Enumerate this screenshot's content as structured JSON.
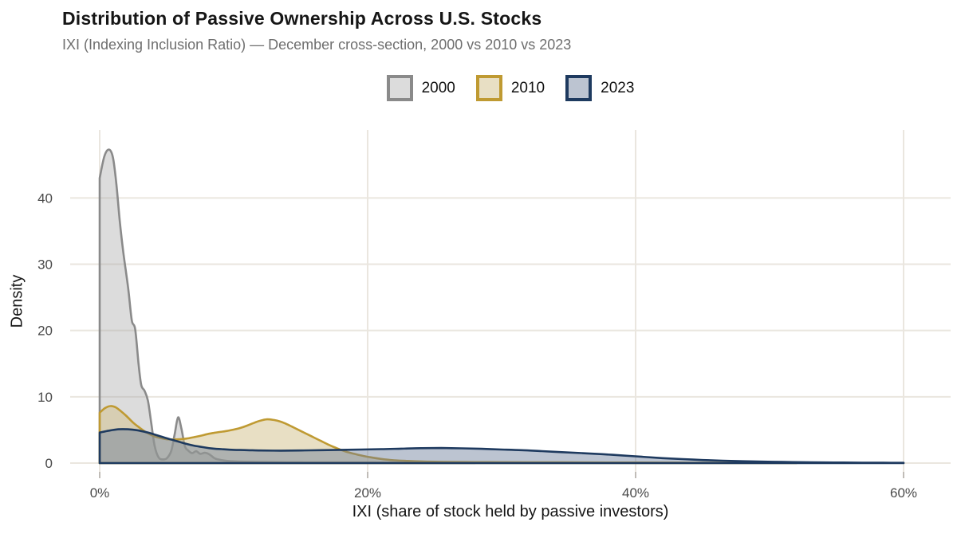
{
  "title": "Distribution of Passive Ownership Across U.S. Stocks",
  "subtitle": "IXI (Indexing Inclusion Ratio) — December cross-section, 2000 vs 2010 vs 2023",
  "colors": {
    "background": "#ffffff",
    "grid": "#eae6df",
    "tick_mark": "#b0aca5",
    "axis_text": "#4a4a4a",
    "title_text": "#161616",
    "subtitle_text": "#6e6e6e"
  },
  "chart_data": {
    "type": "area",
    "variant": "kernel-density",
    "title": "Distribution of Passive Ownership Across U.S. Stocks",
    "subtitle": "IXI (Indexing Inclusion Ratio) — December cross-section, 2000 vs 2010 vs 2023",
    "xlabel": "IXI (share of stock held by passive investors)",
    "ylabel": "Density",
    "xlim": [
      0,
      62
    ],
    "ylim": [
      0,
      50
    ],
    "grid": true,
    "legend_position": "top-center",
    "x_tick_values": [
      0,
      20,
      40,
      60
    ],
    "x_tick_labels": [
      "0%",
      "20%",
      "40%",
      "60%"
    ],
    "y_tick_values": [
      0,
      10,
      20,
      30,
      40
    ],
    "y_tick_labels": [
      "0",
      "10",
      "20",
      "30",
      "40"
    ],
    "series": [
      {
        "name": "2000",
        "stroke": "#8a8a8a",
        "fill": "rgba(167,167,167,0.40)",
        "key_fill": "#dcdcdc",
        "points": [
          [
            0,
            43
          ],
          [
            0.35,
            46.3
          ],
          [
            0.7,
            47.3
          ],
          [
            1.0,
            46.0
          ],
          [
            1.25,
            42.0
          ],
          [
            1.5,
            36.5
          ],
          [
            1.75,
            32.0
          ],
          [
            1.95,
            29.0
          ],
          [
            2.15,
            26.0
          ],
          [
            2.4,
            21.5
          ],
          [
            2.65,
            20.2
          ],
          [
            2.9,
            15.0
          ],
          [
            3.1,
            11.8
          ],
          [
            3.35,
            10.9
          ],
          [
            3.6,
            9.4
          ],
          [
            3.85,
            6.0
          ],
          [
            4.1,
            2.6
          ],
          [
            4.4,
            0.85
          ],
          [
            4.75,
            0.55
          ],
          [
            5.05,
            0.8
          ],
          [
            5.35,
            1.9
          ],
          [
            5.6,
            4.4
          ],
          [
            5.85,
            6.9
          ],
          [
            6.1,
            5.2
          ],
          [
            6.35,
            2.6
          ],
          [
            6.6,
            1.9
          ],
          [
            6.9,
            1.5
          ],
          [
            7.2,
            1.8
          ],
          [
            7.5,
            1.4
          ],
          [
            7.85,
            1.55
          ],
          [
            8.2,
            1.3
          ],
          [
            8.6,
            0.7
          ],
          [
            9.1,
            0.45
          ],
          [
            9.7,
            0.3
          ],
          [
            10.5,
            0.22
          ],
          [
            12,
            0.16
          ],
          [
            14,
            0.12
          ],
          [
            16,
            0.1
          ],
          [
            18,
            0.1
          ],
          [
            20,
            0.1
          ],
          [
            22,
            0.07
          ],
          [
            24,
            0.04
          ],
          [
            26,
            0.02
          ],
          [
            28,
            0.01
          ]
        ]
      },
      {
        "name": "2010",
        "stroke": "#bf9a32",
        "fill": "rgba(209,191,137,0.50)",
        "key_fill": "#e8dfc4",
        "points": [
          [
            0,
            7.6
          ],
          [
            0.4,
            8.3
          ],
          [
            0.8,
            8.6
          ],
          [
            1.2,
            8.4
          ],
          [
            1.6,
            7.8
          ],
          [
            2.0,
            7.1
          ],
          [
            2.5,
            6.1
          ],
          [
            3.0,
            5.3
          ],
          [
            3.5,
            4.6
          ],
          [
            4.0,
            4.1
          ],
          [
            4.5,
            3.8
          ],
          [
            5.0,
            3.6
          ],
          [
            5.5,
            3.55
          ],
          [
            6.0,
            3.6
          ],
          [
            6.5,
            3.7
          ],
          [
            7.0,
            3.9
          ],
          [
            7.5,
            4.1
          ],
          [
            8.0,
            4.35
          ],
          [
            8.5,
            4.55
          ],
          [
            9.0,
            4.7
          ],
          [
            9.5,
            4.85
          ],
          [
            10,
            5.05
          ],
          [
            10.5,
            5.3
          ],
          [
            11,
            5.65
          ],
          [
            11.5,
            6.05
          ],
          [
            12,
            6.4
          ],
          [
            12.5,
            6.6
          ],
          [
            13,
            6.5
          ],
          [
            13.5,
            6.25
          ],
          [
            14,
            5.85
          ],
          [
            14.5,
            5.35
          ],
          [
            15,
            4.85
          ],
          [
            15.5,
            4.35
          ],
          [
            16,
            3.85
          ],
          [
            16.5,
            3.35
          ],
          [
            17,
            2.85
          ],
          [
            17.5,
            2.4
          ],
          [
            18,
            2.0
          ],
          [
            18.5,
            1.65
          ],
          [
            19,
            1.4
          ],
          [
            19.5,
            1.15
          ],
          [
            20,
            0.95
          ],
          [
            21,
            0.62
          ],
          [
            22,
            0.42
          ],
          [
            23,
            0.32
          ],
          [
            24,
            0.25
          ],
          [
            25,
            0.21
          ],
          [
            26,
            0.18
          ],
          [
            28,
            0.15
          ],
          [
            30,
            0.13
          ],
          [
            32,
            0.12
          ],
          [
            34,
            0.11
          ],
          [
            36,
            0.1
          ],
          [
            38,
            0.09
          ],
          [
            40,
            0.08
          ],
          [
            42,
            0.07
          ],
          [
            44,
            0.06
          ],
          [
            46,
            0.05
          ],
          [
            48,
            0.04
          ],
          [
            50,
            0.03
          ],
          [
            52,
            0.02
          ]
        ]
      },
      {
        "name": "2023",
        "stroke": "#1e3a5f",
        "fill": "rgba(106,124,153,0.45)",
        "key_fill": "#bcc4d1",
        "points": [
          [
            0,
            4.6
          ],
          [
            0.7,
            4.9
          ],
          [
            1.4,
            5.1
          ],
          [
            2.1,
            5.1
          ],
          [
            2.8,
            4.95
          ],
          [
            3.5,
            4.65
          ],
          [
            4.2,
            4.25
          ],
          [
            4.9,
            3.8
          ],
          [
            5.6,
            3.4
          ],
          [
            6.3,
            3.0
          ],
          [
            7.0,
            2.65
          ],
          [
            7.7,
            2.4
          ],
          [
            8.4,
            2.2
          ],
          [
            9.1,
            2.1
          ],
          [
            10,
            2.0
          ],
          [
            11,
            1.95
          ],
          [
            12,
            1.9
          ],
          [
            13.5,
            1.88
          ],
          [
            15,
            1.9
          ],
          [
            16.5,
            1.95
          ],
          [
            18,
            2.0
          ],
          [
            19.5,
            2.05
          ],
          [
            21,
            2.1
          ],
          [
            22.5,
            2.18
          ],
          [
            24,
            2.25
          ],
          [
            25.5,
            2.27
          ],
          [
            27,
            2.22
          ],
          [
            28.5,
            2.15
          ],
          [
            30,
            2.05
          ],
          [
            31.5,
            1.95
          ],
          [
            33,
            1.8
          ],
          [
            34.5,
            1.65
          ],
          [
            36,
            1.5
          ],
          [
            37.5,
            1.35
          ],
          [
            39,
            1.15
          ],
          [
            40.5,
            0.95
          ],
          [
            42,
            0.75
          ],
          [
            43.5,
            0.6
          ],
          [
            45,
            0.46
          ],
          [
            46.5,
            0.36
          ],
          [
            48,
            0.28
          ],
          [
            49.5,
            0.22
          ],
          [
            51,
            0.17
          ],
          [
            52.5,
            0.13
          ],
          [
            54,
            0.1
          ],
          [
            55.5,
            0.08
          ],
          [
            57,
            0.06
          ],
          [
            58.5,
            0.05
          ],
          [
            60,
            0.04
          ]
        ]
      }
    ]
  }
}
